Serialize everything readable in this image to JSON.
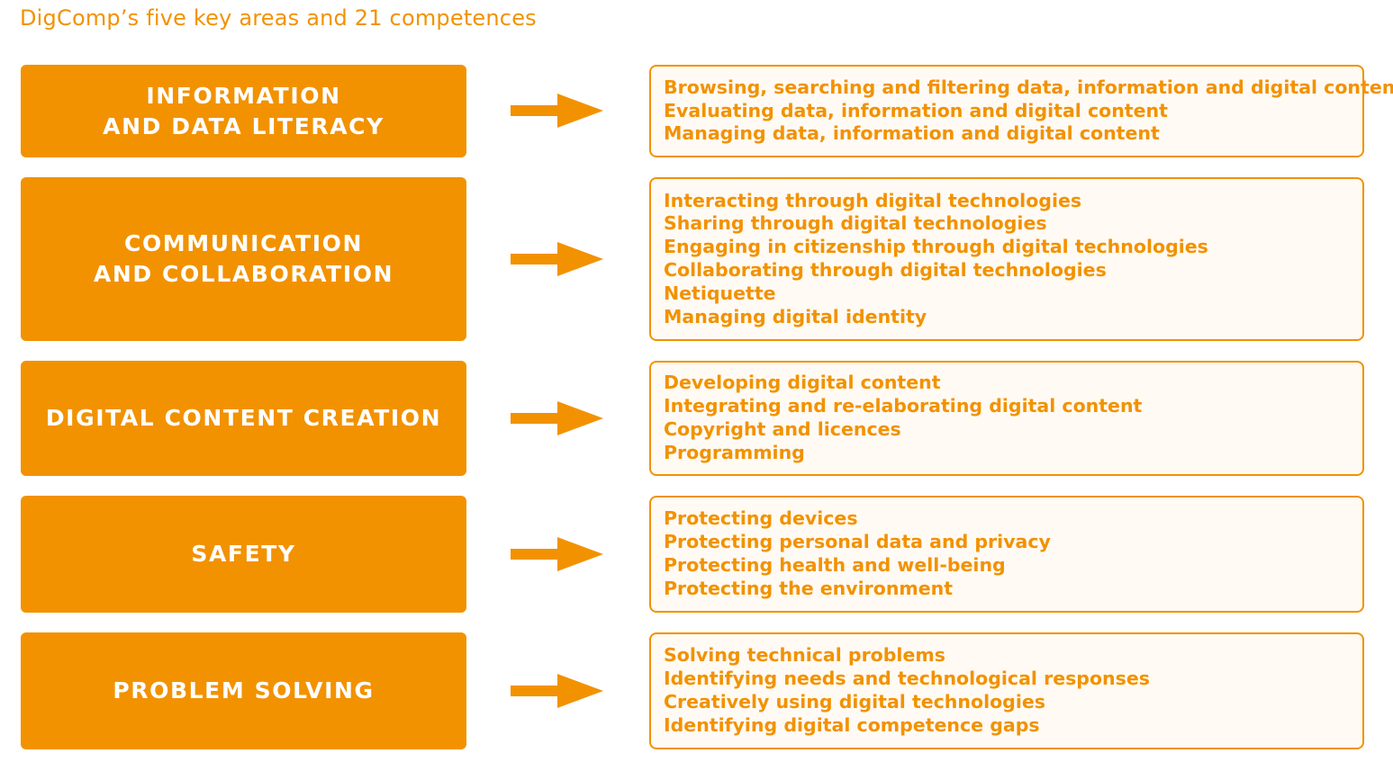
{
  "title": "DigComp’s five key areas and 21 competences",
  "colors": {
    "accent": "#f29200",
    "panel_bg": "#fffaf3",
    "area_text": "#ffffff"
  },
  "areas": [
    {
      "label": "INFORMATION\nAND DATA LITERACY",
      "competences": [
        "Browsing, searching and filtering data, information and digital content",
        "Evaluating data, information and digital content",
        "Managing data, information and digital content"
      ]
    },
    {
      "label": "COMMUNICATION\nAND COLLABORATION",
      "competences": [
        "Interacting through digital technologies",
        "Sharing through digital technologies",
        "Engaging in citizenship through digital technologies",
        "Collaborating through digital technologies",
        "Netiquette",
        "Managing digital identity"
      ]
    },
    {
      "label": "DIGITAL CONTENT CREATION",
      "competences": [
        "Developing digital content",
        "Integrating and re-elaborating digital content",
        "Copyright and licences",
        "Programming"
      ]
    },
    {
      "label": "SAFETY",
      "competences": [
        "Protecting devices",
        "Protecting personal data and privacy",
        "Protecting health and well-being",
        "Protecting the environment"
      ]
    },
    {
      "label": "PROBLEM SOLVING",
      "competences": [
        "Solving technical problems",
        "Identifying needs and technological responses",
        "Creatively using digital technologies",
        "Identifying digital competence gaps"
      ]
    }
  ]
}
